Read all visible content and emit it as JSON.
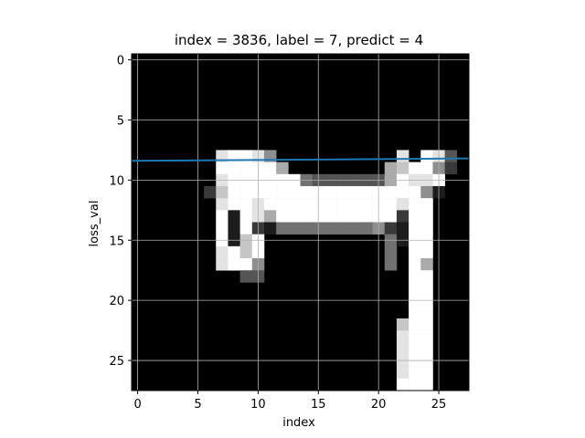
{
  "chart_data": {
    "type": "heatmap",
    "title": "index = 3836, label = 7, predict = 4",
    "xlabel": "index",
    "ylabel": "loss_val",
    "xlim": [
      -0.5,
      27.5
    ],
    "ylim": [
      27.5,
      -0.5
    ],
    "x_ticks": [
      0,
      5,
      10,
      15,
      20,
      25
    ],
    "y_ticks": [
      0,
      5,
      10,
      15,
      20,
      25
    ],
    "grid": true,
    "colormap": "gray",
    "image_rows": [
      "0000000000000000000000000000",
      "0000000000000000000000000000",
      "0000000000000000000000000000",
      "0000000000000000000000000000",
      "0000000000000000000000000000",
      "0000000000000000000000000000",
      "0000000000000000000000000000",
      "0000000000000000000000000000",
      "00000008998500000000008098300",
      "00000009999960000000067995200",
      "0000000899999943333336988900",
      "0000002799999999999999995100",
      "0000000899899999999999899000",
      "0000000919869999999999299000",
      "0000000919214444444452199000",
      "0000000917900000000004199000",
      "0000000897900000000004099000",
      "0000000899500000000004096000",
      "0000000003300000000000099000",
      "0000000000000000000000099000",
      "0000000000000000000000099000",
      "0000000000000000000000099000",
      "0000000000000000000000799000",
      "0000000000000000000000899000",
      "0000000000000000000000899000",
      "0000000000000000000000899000",
      "0000000000000000000000899000",
      "0000000000000000000000999000"
    ],
    "series": [
      {
        "x": [
          -0.5,
          27.5
        ],
        "y": [
          8.4,
          8.2
        ]
      }
    ],
    "line_color": "#1f77b4"
  }
}
